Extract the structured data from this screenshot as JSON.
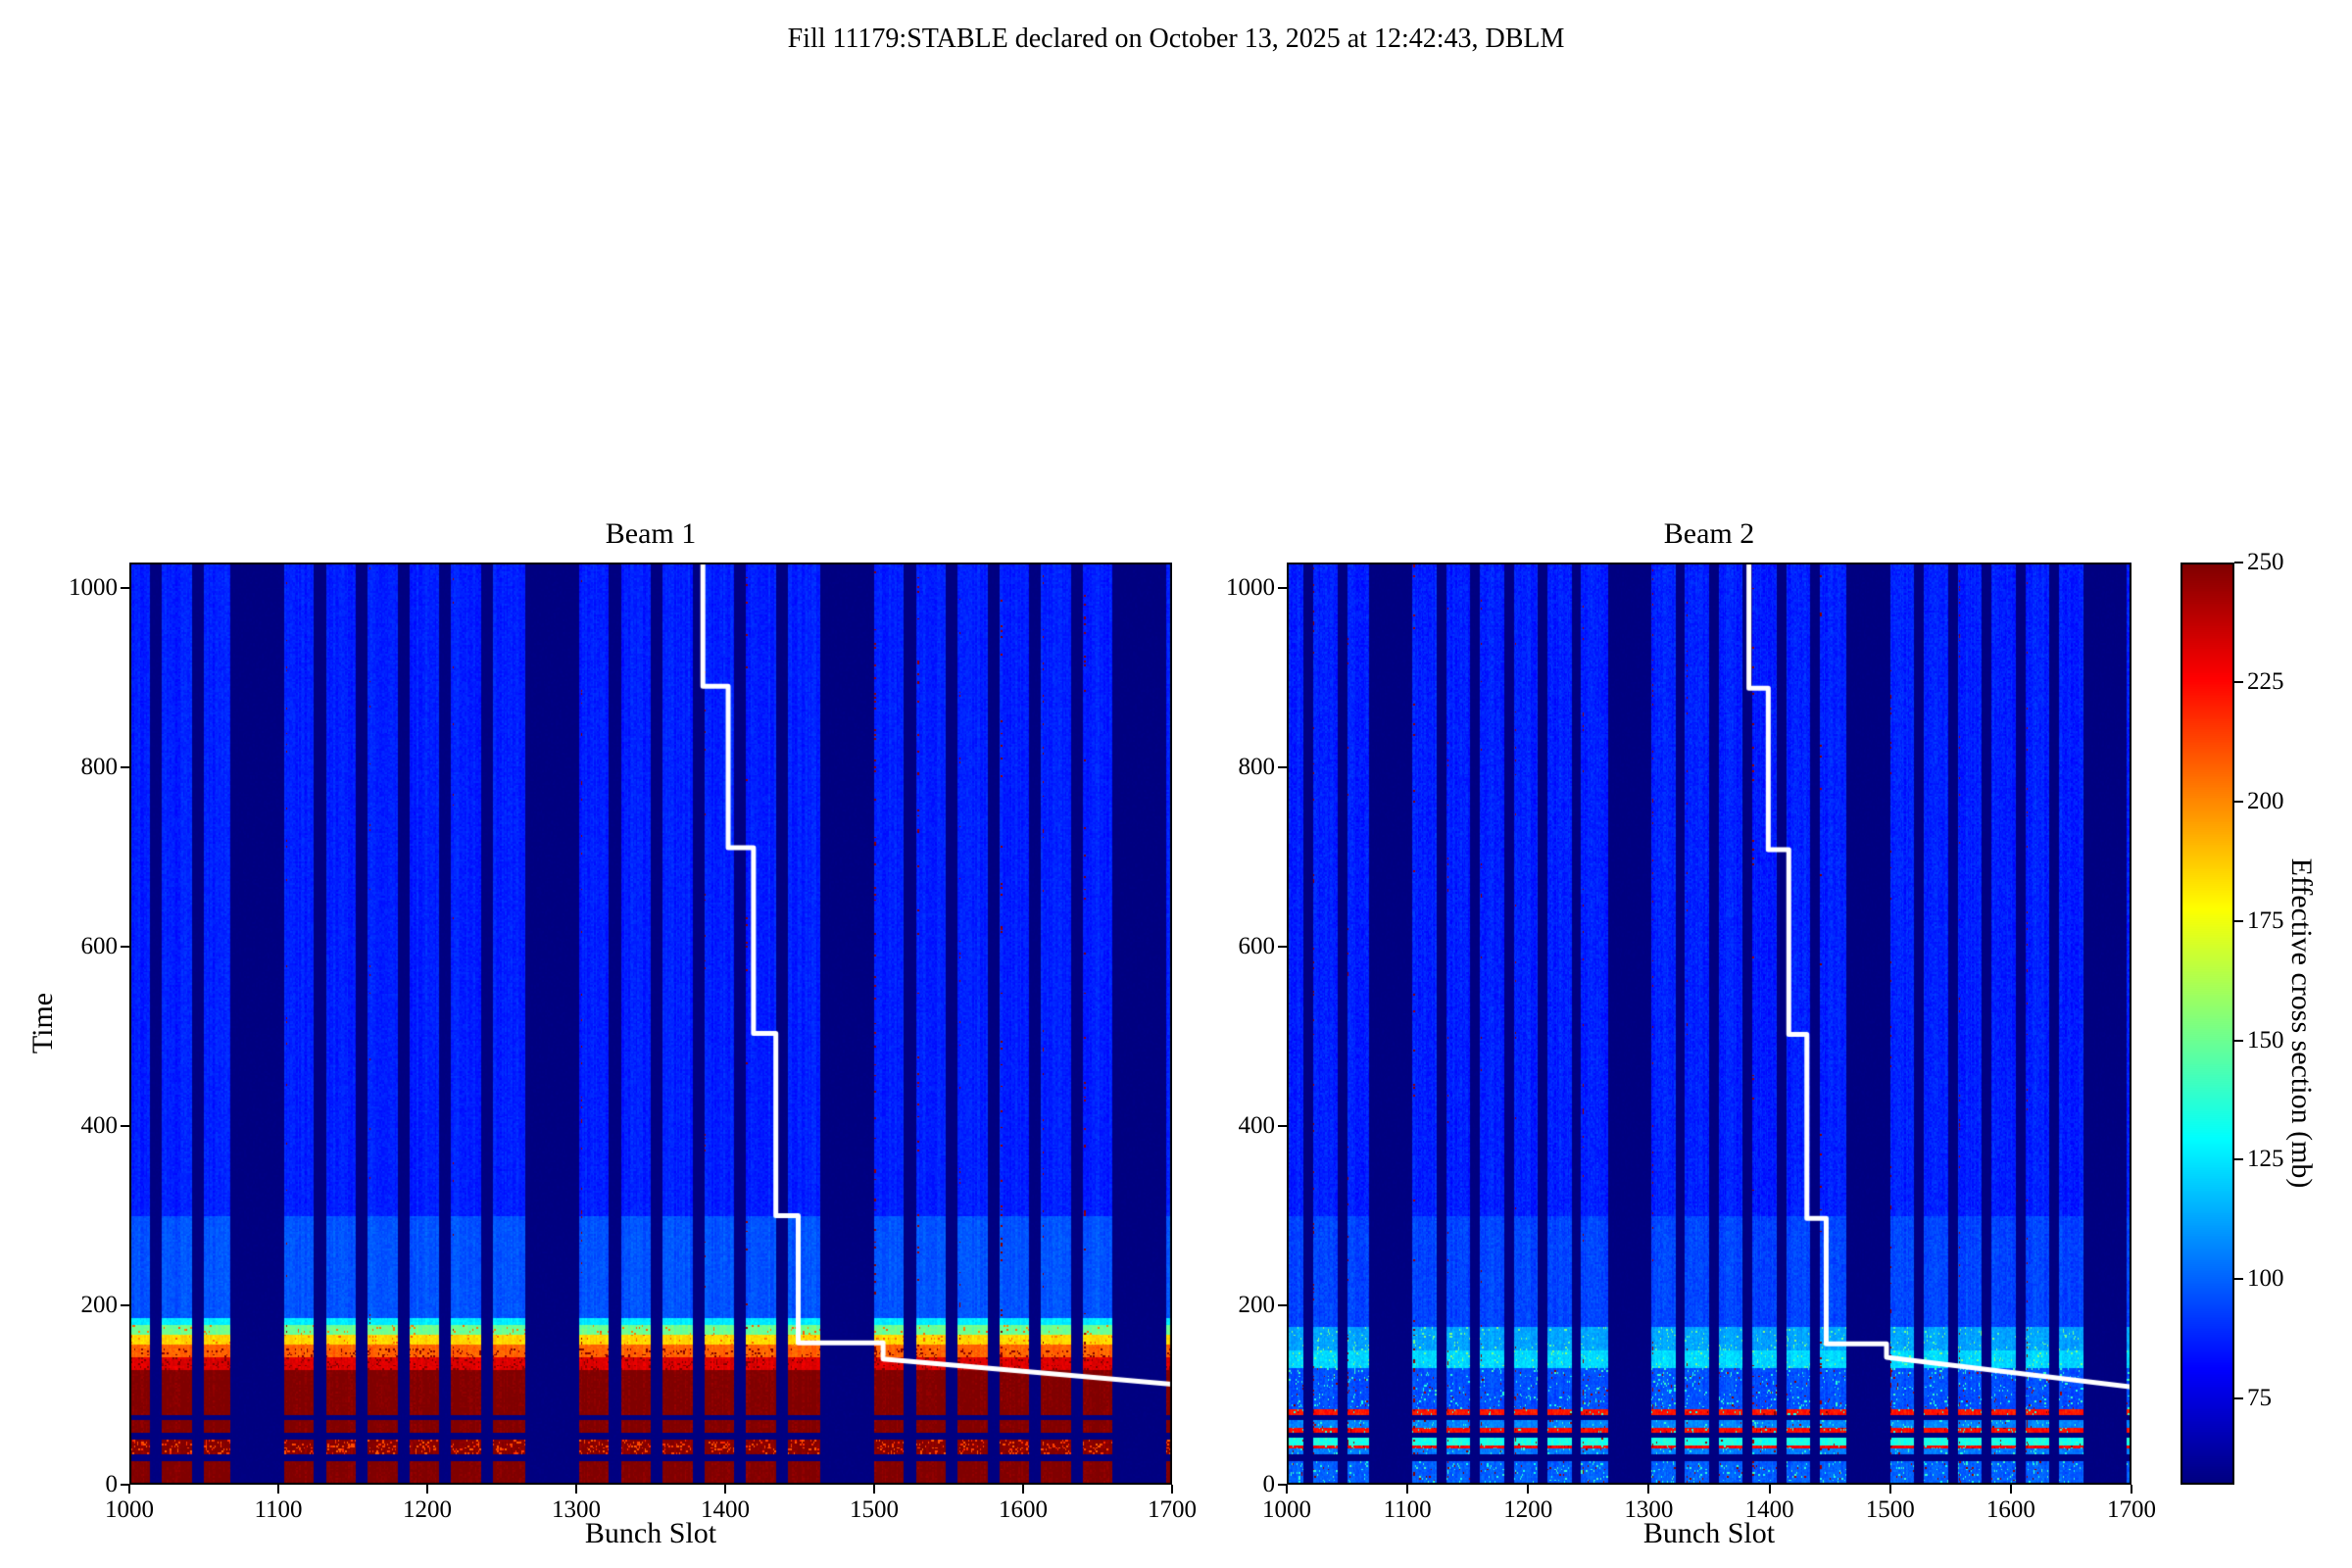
{
  "figure": {
    "title": "Fill 11179:STABLE declared on October 13, 2025 at 12:42:43, DBLM"
  },
  "chart_data": {
    "type": "heatmap",
    "colormap": "jet",
    "x": {
      "label": "Bunch Slot",
      "min": 1000,
      "max": 1700,
      "ticks": [
        1000,
        1100,
        1200,
        1300,
        1400,
        1500,
        1600,
        1700
      ]
    },
    "y": {
      "label": "Time",
      "min": 0,
      "max": 1028,
      "ticks": [
        0,
        200,
        400,
        600,
        800,
        1000
      ]
    },
    "colorbar": {
      "label": "Effective cross section (mb)",
      "vmin": 57,
      "vmax": 250,
      "ticks": [
        75,
        100,
        125,
        150,
        175,
        200,
        225,
        250
      ]
    },
    "filled_bunch_trains": [
      [
        1000,
        1014
      ],
      [
        1022,
        1042
      ],
      [
        1050,
        1068
      ],
      [
        1104,
        1124
      ],
      [
        1132,
        1152
      ],
      [
        1160,
        1180
      ],
      [
        1188,
        1208
      ],
      [
        1216,
        1236
      ],
      [
        1244,
        1266
      ],
      [
        1302,
        1322
      ],
      [
        1330,
        1350
      ],
      [
        1358,
        1378
      ],
      [
        1386,
        1406
      ],
      [
        1414,
        1434
      ],
      [
        1442,
        1464
      ],
      [
        1500,
        1520
      ],
      [
        1528,
        1548
      ],
      [
        1556,
        1576
      ],
      [
        1584,
        1604
      ],
      [
        1612,
        1632
      ],
      [
        1640,
        1660
      ],
      [
        1696,
        1700
      ]
    ],
    "no_data_time_bands": [
      [
        25,
        33
      ],
      [
        50,
        57
      ],
      [
        72,
        78
      ]
    ],
    "panels": [
      {
        "title": "Beam 1",
        "seed": 11179,
        "noise": 6,
        "time_bands": [
          [
            0,
            25,
            250
          ],
          [
            25,
            33,
            57
          ],
          [
            33,
            50,
            249
          ],
          [
            50,
            57,
            57
          ],
          [
            57,
            72,
            250
          ],
          [
            72,
            78,
            57
          ],
          [
            78,
            128,
            250
          ],
          [
            128,
            142,
            232
          ],
          [
            142,
            156,
            207
          ],
          [
            156,
            167,
            185
          ],
          [
            167,
            178,
            150
          ],
          [
            178,
            186,
            126
          ],
          [
            186,
            300,
            97
          ],
          [
            300,
            1028,
            87
          ]
        ],
        "band_speckle": [
          {
            "t0": 33,
            "t1": 50,
            "p": 0.18,
            "v": 213
          },
          {
            "t0": 128,
            "t1": 152,
            "p": 0.12,
            "v": 250
          },
          {
            "t0": 152,
            "t1": 178,
            "p": 0.05,
            "v": 205
          }
        ],
        "speckle_columns": [
          [
            1105,
            0.1
          ],
          [
            1161,
            0.07
          ],
          [
            1217,
            0.07
          ],
          [
            1303,
            0.16
          ],
          [
            1386,
            0.1
          ],
          [
            1414,
            0.1
          ],
          [
            1465,
            0.14
          ],
          [
            1500,
            0.22
          ],
          [
            1529,
            0.16
          ],
          [
            1557,
            0.16
          ],
          [
            1585,
            0.16
          ],
          [
            1613,
            0.2
          ],
          [
            1641,
            0.16
          ],
          [
            1699,
            0.4
          ]
        ],
        "injection_front_line": [
          [
            1385,
            1028
          ],
          [
            1385,
            890
          ],
          [
            1402,
            890
          ],
          [
            1402,
            710
          ],
          [
            1419,
            710
          ],
          [
            1419,
            503
          ],
          [
            1434,
            503
          ],
          [
            1434,
            300
          ],
          [
            1449,
            300
          ],
          [
            1449,
            158
          ],
          [
            1506,
            158
          ],
          [
            1506,
            140
          ],
          [
            1700,
            112
          ]
        ]
      },
      {
        "title": "Beam 2",
        "seed": 21179,
        "noise": 8,
        "time_bands": [
          [
            0,
            25,
            99
          ],
          [
            25,
            33,
            57
          ],
          [
            33,
            39,
            104
          ],
          [
            39,
            44,
            226
          ],
          [
            44,
            51,
            134
          ],
          [
            51,
            57,
            57
          ],
          [
            57,
            63,
            224
          ],
          [
            63,
            72,
            106
          ],
          [
            72,
            78,
            57
          ],
          [
            78,
            84,
            222
          ],
          [
            84,
            130,
            96
          ],
          [
            130,
            150,
            122
          ],
          [
            150,
            175,
            112
          ],
          [
            175,
            300,
            94
          ],
          [
            300,
            1028,
            87
          ]
        ],
        "band_speckle": [
          {
            "t0": 0,
            "t1": 130,
            "p": 0.06,
            "v": 138
          },
          {
            "t0": 0,
            "t1": 130,
            "p": 0.015,
            "v": 246
          },
          {
            "t0": 130,
            "t1": 175,
            "p": 0.05,
            "v": 150
          }
        ],
        "speckle_columns": [
          [
            1022,
            0.12
          ],
          [
            1050,
            0.1
          ],
          [
            1105,
            0.12
          ],
          [
            1133,
            0.08
          ],
          [
            1161,
            0.08
          ],
          [
            1189,
            0.08
          ],
          [
            1245,
            0.08
          ],
          [
            1303,
            0.15
          ],
          [
            1331,
            0.1
          ],
          [
            1386,
            0.1
          ],
          [
            1442,
            0.08
          ],
          [
            1500,
            0.16
          ],
          [
            1557,
            0.14
          ],
          [
            1613,
            0.14
          ],
          [
            1660,
            0.45
          ],
          [
            1699,
            0.4
          ]
        ],
        "injection_front_line": [
          [
            1383,
            1028
          ],
          [
            1383,
            888
          ],
          [
            1399,
            888
          ],
          [
            1399,
            708
          ],
          [
            1416,
            708
          ],
          [
            1416,
            502
          ],
          [
            1431,
            502
          ],
          [
            1431,
            297
          ],
          [
            1447,
            297
          ],
          [
            1447,
            157
          ],
          [
            1497,
            157
          ],
          [
            1497,
            142
          ],
          [
            1700,
            109
          ]
        ]
      }
    ]
  }
}
